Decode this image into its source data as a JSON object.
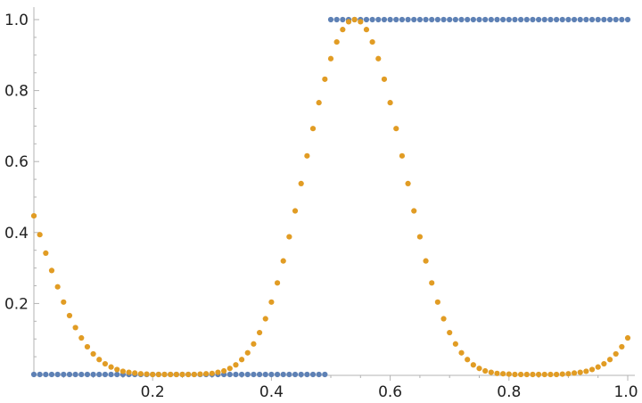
{
  "chart_data": {
    "type": "scatter",
    "title": "",
    "xlabel": "",
    "ylabel": "",
    "xlim": [
      0,
      1
    ],
    "ylim": [
      0,
      1
    ],
    "grid": false,
    "x_ticks": [
      {
        "value": 0.2,
        "label": "0.2"
      },
      {
        "value": 0.4,
        "label": "0.4"
      },
      {
        "value": 0.6,
        "label": "0.6"
      },
      {
        "value": 0.8,
        "label": "0.8"
      },
      {
        "value": 1.0,
        "label": "1.0"
      }
    ],
    "y_ticks": [
      {
        "value": 0.2,
        "label": "0.2"
      },
      {
        "value": 0.4,
        "label": "0.4"
      },
      {
        "value": 0.6,
        "label": "0.6"
      },
      {
        "value": 0.8,
        "label": "0.8"
      },
      {
        "value": 1.0,
        "label": "1.0"
      }
    ],
    "x": [
      0.0,
      0.01,
      0.02,
      0.03,
      0.04,
      0.05,
      0.06,
      0.07,
      0.08,
      0.09,
      0.1,
      0.11,
      0.12,
      0.13,
      0.14,
      0.15,
      0.16,
      0.17,
      0.18,
      0.19,
      0.2,
      0.21,
      0.22,
      0.23,
      0.24,
      0.25,
      0.26,
      0.27,
      0.28,
      0.29,
      0.3,
      0.31,
      0.32,
      0.33,
      0.34,
      0.35,
      0.36,
      0.37,
      0.38,
      0.39,
      0.4,
      0.41,
      0.42,
      0.43,
      0.44,
      0.45,
      0.46,
      0.47,
      0.48,
      0.49,
      0.5,
      0.51,
      0.52,
      0.53,
      0.54,
      0.55,
      0.56,
      0.57,
      0.58,
      0.59,
      0.6,
      0.61,
      0.62,
      0.63,
      0.64,
      0.65,
      0.66,
      0.67,
      0.68,
      0.69,
      0.7,
      0.71,
      0.72,
      0.73,
      0.74,
      0.75,
      0.76,
      0.77,
      0.78,
      0.79,
      0.8,
      0.81,
      0.82,
      0.83,
      0.84,
      0.85,
      0.86,
      0.87,
      0.88,
      0.89,
      0.9,
      0.91,
      0.92,
      0.93,
      0.94,
      0.95,
      0.96,
      0.97,
      0.98,
      0.99,
      1.0
    ],
    "series": [
      {
        "color": "#5E81B5",
        "values": [
          0,
          0,
          0,
          0,
          0,
          0,
          0,
          0,
          0,
          0,
          0,
          0,
          0,
          0,
          0,
          0,
          0,
          0,
          0,
          0,
          0,
          0,
          0,
          0,
          0,
          0,
          0,
          0,
          0,
          0,
          0,
          0,
          0,
          0,
          0,
          0,
          0,
          0,
          0,
          0,
          0,
          0,
          0,
          0,
          0,
          0,
          0,
          0,
          0,
          0,
          1,
          1,
          1,
          1,
          1,
          1,
          1,
          1,
          1,
          1,
          1,
          1,
          1,
          1,
          1,
          1,
          1,
          1,
          1,
          1,
          1,
          1,
          1,
          1,
          1,
          1,
          1,
          1,
          1,
          1,
          1,
          1,
          1,
          1,
          1,
          1,
          1,
          1,
          1,
          1,
          1,
          1,
          1,
          1,
          1,
          1,
          1,
          1,
          1,
          1,
          1
        ]
      },
      {
        "color": "#E19C24",
        "values": [
          0.447,
          0.394,
          0.342,
          0.293,
          0.247,
          0.204,
          0.166,
          0.132,
          0.103,
          0.078,
          0.058,
          0.042,
          0.03,
          0.021,
          0.014,
          0.009,
          0.006,
          0.004,
          0.002,
          0.001,
          0.0,
          0.0,
          0.0,
          0.0,
          0.0,
          0.0,
          0.0,
          0.0,
          0.001,
          0.002,
          0.003,
          0.006,
          0.01,
          0.017,
          0.027,
          0.042,
          0.061,
          0.086,
          0.118,
          0.157,
          0.204,
          0.258,
          0.32,
          0.388,
          0.461,
          0.538,
          0.616,
          0.693,
          0.766,
          0.832,
          0.89,
          0.937,
          0.972,
          0.994,
          1.0,
          0.994,
          0.972,
          0.937,
          0.89,
          0.832,
          0.766,
          0.693,
          0.616,
          0.538,
          0.461,
          0.388,
          0.32,
          0.258,
          0.204,
          0.157,
          0.118,
          0.086,
          0.061,
          0.042,
          0.027,
          0.017,
          0.01,
          0.006,
          0.003,
          0.002,
          0.001,
          0.0,
          0.0,
          0.0,
          0.0,
          0.0,
          0.0,
          0.0,
          0.0,
          0.001,
          0.002,
          0.004,
          0.006,
          0.009,
          0.014,
          0.021,
          0.03,
          0.042,
          0.058,
          0.078,
          0.103
        ]
      }
    ]
  }
}
